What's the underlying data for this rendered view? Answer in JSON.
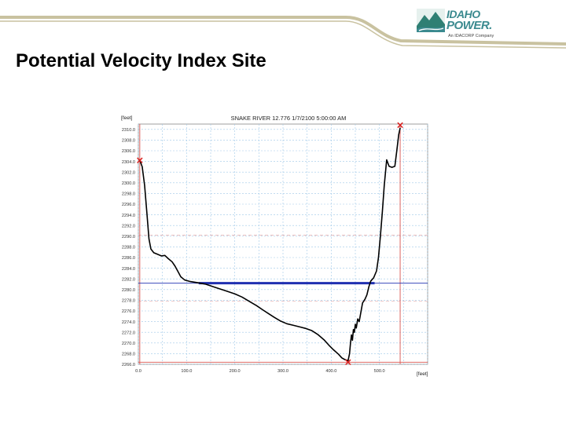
{
  "slide": {
    "title": "Potential Velocity Index Site"
  },
  "logo": {
    "line1": "IDAHO",
    "line2": "POWER.",
    "sub": "An IDACORP Company",
    "icon": "idaho-power-mountain-logo"
  },
  "colors": {
    "accent_band": "#c9c2a0",
    "logo_teal": "#3b8a8f",
    "profile_line": "#000000",
    "water_surface": "#1f2fb0",
    "limit_lines": "#d9534f",
    "grid": "#9fc8e8"
  },
  "chart_data": {
    "type": "line",
    "title": "SNAKE RIVER  12.776  1/7/2100 5:00:00 AM",
    "ylabel": "[feet]",
    "xlabel": "[feet]",
    "xlim": [
      0,
      600
    ],
    "ylim": [
      2266,
      2311
    ],
    "x_ticks": [
      0,
      100,
      200,
      300,
      400,
      500
    ],
    "x_tick_labels": [
      "0.0",
      "100.0",
      "200.0",
      "300.0",
      "400.0",
      "500.0"
    ],
    "y_ticks": [
      2266,
      2268,
      2270,
      2272,
      2274,
      2276,
      2278,
      2280,
      2282,
      2284,
      2286,
      2288,
      2290,
      2292,
      2294,
      2296,
      2298,
      2300,
      2302,
      2304,
      2306,
      2308,
      2310
    ],
    "y_tick_labels": [
      "2266.0",
      "2268.0",
      "2270.0",
      "2272.0",
      "2274.0",
      "2276.0",
      "2278.0",
      "2280.0",
      "2282.0",
      "2284.0",
      "2286.0",
      "2288.0",
      "2290.0",
      "2292.0",
      "2294.0",
      "2296.0",
      "2298.0",
      "2300.0",
      "2302.0",
      "2304.0",
      "2306.0",
      "2308.0",
      "2310.0"
    ],
    "grid": true,
    "series": [
      {
        "values": [
          [
            3,
            2304.2
          ],
          [
            8,
            2303
          ],
          [
            13,
            2299.5
          ],
          [
            18,
            2294
          ],
          [
            22,
            2289.5
          ],
          [
            26,
            2287.6
          ],
          [
            32,
            2286.9
          ],
          [
            40,
            2286.6
          ],
          [
            48,
            2286.3
          ],
          [
            55,
            2286.4
          ],
          [
            62,
            2285.8
          ],
          [
            70,
            2285.2
          ],
          [
            76,
            2284.4
          ],
          [
            82,
            2283.4
          ],
          [
            88,
            2282.4
          ],
          [
            96,
            2281.8
          ],
          [
            108,
            2281.5
          ],
          [
            122,
            2281.3
          ],
          [
            140,
            2281
          ],
          [
            160,
            2280.4
          ],
          [
            180,
            2279.8
          ],
          [
            200,
            2279.2
          ],
          [
            215,
            2278.6
          ],
          [
            230,
            2277.8
          ],
          [
            245,
            2277
          ],
          [
            258,
            2276.2
          ],
          [
            270,
            2275.5
          ],
          [
            282,
            2274.8
          ],
          [
            295,
            2274.1
          ],
          [
            308,
            2273.6
          ],
          [
            322,
            2273.3
          ],
          [
            335,
            2273
          ],
          [
            348,
            2272.7
          ],
          [
            360,
            2272.3
          ],
          [
            372,
            2271.6
          ],
          [
            385,
            2270.6
          ],
          [
            395,
            2269.6
          ],
          [
            405,
            2268.7
          ],
          [
            415,
            2267.9
          ],
          [
            422,
            2267.2
          ],
          [
            428,
            2266.9
          ],
          [
            435,
            2266.7
          ],
          [
            438,
            2268
          ],
          [
            440,
            2270
          ],
          [
            442,
            2271.5
          ],
          [
            444,
            2270.5
          ],
          [
            446,
            2272.5
          ],
          [
            448,
            2272
          ],
          [
            450,
            2273.5
          ],
          [
            452,
            2272.8
          ],
          [
            455,
            2274.5
          ],
          [
            458,
            2274
          ],
          [
            462,
            2276
          ],
          [
            465,
            2277.5
          ],
          [
            470,
            2278.2
          ],
          [
            474,
            2279
          ],
          [
            478,
            2280.5
          ],
          [
            482,
            2281.6
          ],
          [
            488,
            2282.2
          ],
          [
            494,
            2283.5
          ],
          [
            498,
            2286
          ],
          [
            502,
            2290
          ],
          [
            506,
            2294.5
          ],
          [
            510,
            2299.5
          ],
          [
            515,
            2304.3
          ],
          [
            520,
            2303.1
          ],
          [
            526,
            2302.9
          ],
          [
            532,
            2303.1
          ],
          [
            536,
            2306
          ],
          [
            540,
            2309
          ],
          [
            543,
            2310.3
          ]
        ]
      },
      {
        "type": "hline",
        "y_value": 2281.2,
        "x_range": [
          125,
          490
        ]
      }
    ],
    "reference_lines": {
      "vertical": [
        3,
        543
      ],
      "horizontal": [
        2266.4,
        2281.2
      ]
    },
    "dashed_lines": [
      2290.2,
      2277.8
    ],
    "markers": [
      {
        "x": 3,
        "y": 2304.2,
        "symbol": "x"
      },
      {
        "x": 435,
        "y": 2266.4,
        "symbol": "x"
      },
      {
        "x": 543,
        "y": 2310.8,
        "symbol": "x"
      }
    ]
  }
}
